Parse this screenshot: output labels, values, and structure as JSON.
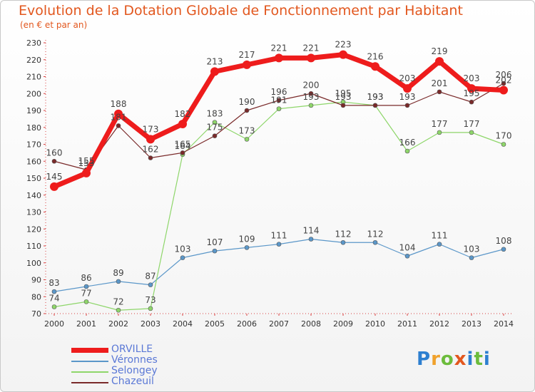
{
  "title": "Evolution de la Dotation Globale de Fonctionnement par Habitant",
  "subtitle": "(en € et par an)",
  "logo": "Proxiti",
  "chart_data": {
    "type": "line",
    "title": "Evolution de la Dotation Globale de Fonctionnement par Habitant",
    "ylabel": "(en € et par an)",
    "xlabel": "",
    "ylim": [
      70,
      230
    ],
    "yticks": [
      70,
      80,
      90,
      100,
      110,
      120,
      130,
      140,
      150,
      160,
      170,
      180,
      190,
      200,
      210,
      220,
      230
    ],
    "grid": false,
    "legend": "bottom-left",
    "categories": [
      "2000",
      "2001",
      "2002",
      "2003",
      "2004",
      "2005",
      "2006",
      "2007",
      "2008",
      "2009",
      "2010",
      "2011",
      "2012",
      "2013",
      "2014"
    ],
    "series": [
      {
        "name": "ORVILLE",
        "color": "#ee1c1c",
        "values": [
          145,
          153,
          188,
          173,
          182,
          213,
          217,
          221,
          221,
          223,
          216,
          203,
          219,
          203,
          202
        ]
      },
      {
        "name": "Véronnes",
        "color": "#5b97c9",
        "values": [
          83,
          86,
          89,
          87,
          103,
          107,
          109,
          111,
          114,
          112,
          112,
          104,
          111,
          103,
          108
        ]
      },
      {
        "name": "Selongey",
        "color": "#8ed66a",
        "values": [
          74,
          77,
          72,
          73,
          164,
          183,
          173,
          191,
          193,
          195,
          193,
          166,
          177,
          177,
          170
        ]
      },
      {
        "name": "Chazeuil",
        "color": "#7a2a2a",
        "values": [
          160,
          155,
          181,
          162,
          165,
          175,
          190,
          196,
          200,
          193,
          193,
          193,
          201,
          195,
          206
        ]
      }
    ]
  }
}
